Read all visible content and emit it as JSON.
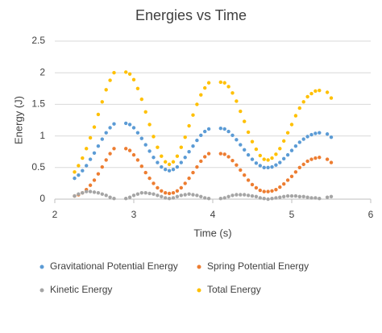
{
  "chart_data": {
    "type": "scatter",
    "title": "Energies vs Time",
    "x_label": "Time (s)",
    "y_label": "Energy (J)",
    "xlim": [
      2,
      6
    ],
    "xticks": [
      2,
      3,
      4,
      5,
      6
    ],
    "ylim": [
      0,
      2.5
    ],
    "yticks": [
      0,
      0.5,
      1,
      1.5,
      2,
      2.5
    ],
    "grid": true,
    "legend": "bottom",
    "x": [
      2.25,
      2.3,
      2.35,
      2.4,
      2.45,
      2.5,
      2.55,
      2.6,
      2.65,
      2.7,
      2.75,
      2.9,
      2.95,
      3.0,
      3.05,
      3.1,
      3.15,
      3.2,
      3.25,
      3.3,
      3.35,
      3.4,
      3.45,
      3.5,
      3.55,
      3.6,
      3.65,
      3.7,
      3.75,
      3.8,
      3.85,
      3.9,
      3.95,
      4.1,
      4.15,
      4.2,
      4.25,
      4.3,
      4.35,
      4.4,
      4.45,
      4.5,
      4.55,
      4.6,
      4.65,
      4.7,
      4.75,
      4.8,
      4.85,
      4.9,
      4.95,
      5.0,
      5.05,
      5.1,
      5.15,
      5.2,
      5.25,
      5.3,
      5.35,
      5.45,
      5.5
    ],
    "series": [
      {
        "name": "Gravitational Potential Energy",
        "color": "#5b9bd5",
        "values": [
          0.33,
          0.38,
          0.45,
          0.53,
          0.63,
          0.73,
          0.84,
          0.95,
          1.05,
          1.13,
          1.19,
          1.2,
          1.18,
          1.13,
          1.05,
          0.96,
          0.86,
          0.76,
          0.66,
          0.58,
          0.51,
          0.47,
          0.45,
          0.47,
          0.51,
          0.58,
          0.66,
          0.75,
          0.84,
          0.93,
          1.01,
          1.07,
          1.11,
          1.12,
          1.11,
          1.07,
          1.01,
          0.94,
          0.86,
          0.78,
          0.7,
          0.63,
          0.57,
          0.53,
          0.5,
          0.5,
          0.51,
          0.54,
          0.58,
          0.64,
          0.7,
          0.77,
          0.84,
          0.9,
          0.95,
          0.99,
          1.02,
          1.04,
          1.05,
          1.03,
          0.98
        ]
      },
      {
        "name": "Spring Potential Energy",
        "color": "#ed7d31",
        "values": [
          0.05,
          0.07,
          0.1,
          0.15,
          0.22,
          0.3,
          0.4,
          0.51,
          0.62,
          0.72,
          0.8,
          0.8,
          0.77,
          0.7,
          0.62,
          0.52,
          0.42,
          0.33,
          0.25,
          0.18,
          0.13,
          0.1,
          0.09,
          0.1,
          0.13,
          0.18,
          0.25,
          0.33,
          0.42,
          0.51,
          0.6,
          0.67,
          0.72,
          0.72,
          0.71,
          0.67,
          0.61,
          0.54,
          0.46,
          0.38,
          0.3,
          0.23,
          0.18,
          0.14,
          0.12,
          0.12,
          0.13,
          0.15,
          0.19,
          0.24,
          0.3,
          0.36,
          0.43,
          0.5,
          0.55,
          0.6,
          0.63,
          0.65,
          0.66,
          0.63,
          0.58
        ]
      },
      {
        "name": "Kinetic Energy",
        "color": "#a5a5a5",
        "values": [
          0.05,
          0.08,
          0.1,
          0.12,
          0.12,
          0.11,
          0.1,
          0.08,
          0.06,
          0.03,
          0.01,
          0.01,
          0.03,
          0.06,
          0.08,
          0.1,
          0.1,
          0.09,
          0.08,
          0.06,
          0.04,
          0.02,
          0.01,
          0.02,
          0.04,
          0.06,
          0.07,
          0.08,
          0.07,
          0.06,
          0.04,
          0.02,
          0.01,
          0.01,
          0.02,
          0.04,
          0.06,
          0.07,
          0.07,
          0.07,
          0.06,
          0.05,
          0.04,
          0.02,
          0.01,
          0.0,
          0.01,
          0.02,
          0.03,
          0.04,
          0.05,
          0.05,
          0.05,
          0.04,
          0.04,
          0.03,
          0.02,
          0.02,
          0.01,
          0.03,
          0.04
        ]
      },
      {
        "name": "Total Energy",
        "color": "#ffc000",
        "values": [
          0.43,
          0.53,
          0.65,
          0.8,
          0.97,
          1.14,
          1.34,
          1.54,
          1.73,
          1.88,
          2.0,
          2.01,
          1.98,
          1.89,
          1.75,
          1.58,
          1.38,
          1.18,
          0.99,
          0.82,
          0.68,
          0.59,
          0.55,
          0.59,
          0.68,
          0.82,
          0.98,
          1.16,
          1.33,
          1.5,
          1.65,
          1.76,
          1.84,
          1.85,
          1.84,
          1.78,
          1.68,
          1.55,
          1.39,
          1.23,
          1.06,
          0.91,
          0.79,
          0.69,
          0.63,
          0.62,
          0.65,
          0.71,
          0.8,
          0.92,
          1.05,
          1.18,
          1.32,
          1.44,
          1.54,
          1.62,
          1.67,
          1.71,
          1.72,
          1.69,
          1.6
        ]
      }
    ]
  }
}
